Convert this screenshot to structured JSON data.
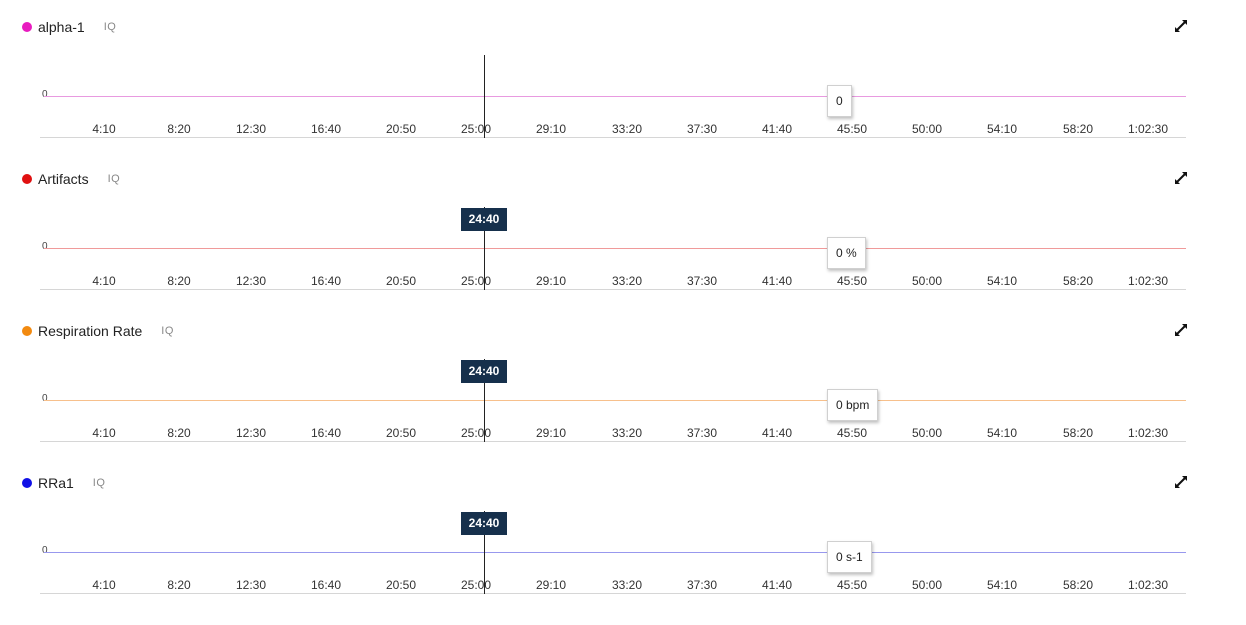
{
  "ticks": [
    "4:10",
    "8:20",
    "12:30",
    "16:40",
    "20:50",
    "25:00",
    "29:10",
    "33:20",
    "37:30",
    "41:40",
    "45:50",
    "50:00",
    "54:10",
    "58:20",
    "1:02:30"
  ],
  "zero_label": "0",
  "iq_label": "IQ",
  "cursor_time": "24:40",
  "panels": [
    {
      "title": "alpha-1",
      "dot_color": "#e81bbf",
      "line_color": "#e89ae0",
      "value": "0",
      "show_cursor_label": false,
      "expand_icon": "expand-icon"
    },
    {
      "title": "Artifacts",
      "dot_color": "#e01010",
      "line_color": "#f09a9a",
      "value": "0 %",
      "show_cursor_label": true,
      "expand_icon": "expand-icon"
    },
    {
      "title": "Respiration Rate",
      "dot_color": "#f28a10",
      "line_color": "#f7c08c",
      "value": "0 bpm",
      "show_cursor_label": true,
      "expand_icon": "expand-icon"
    },
    {
      "title": "RRa1",
      "dot_color": "#1010e6",
      "line_color": "#9898ee",
      "value": "0 s-1",
      "show_cursor_label": true,
      "expand_icon": "expand-icon"
    }
  ]
}
